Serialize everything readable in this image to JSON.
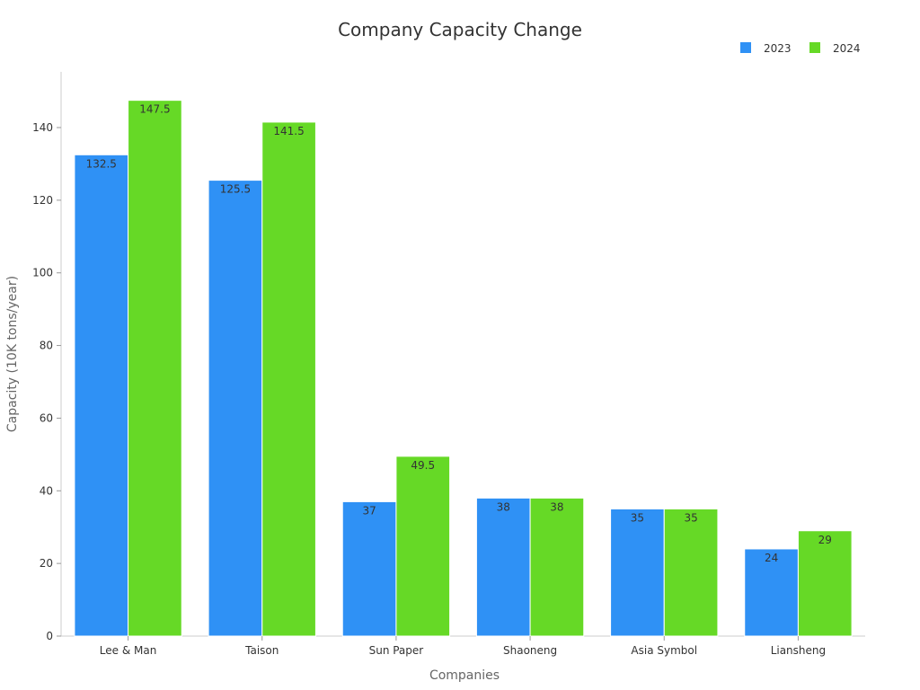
{
  "chart_data": {
    "type": "bar",
    "title": "Company Capacity Change",
    "xlabel": "Companies",
    "ylabel": "Capacity (10K tons/year)",
    "categories": [
      "Lee & Man",
      "Taison",
      "Sun Paper",
      "Shaoneng",
      "Asia Symbol",
      "Liansheng"
    ],
    "series": [
      {
        "name": "2023",
        "color": "#2f91f5",
        "values": [
          132.5,
          125.5,
          37,
          38,
          35,
          24
        ]
      },
      {
        "name": "2024",
        "color": "#66d926",
        "values": [
          147.5,
          141.5,
          49.5,
          38,
          35,
          29
        ]
      }
    ],
    "ylim": [
      0,
      155
    ],
    "yticks": [
      0,
      20,
      40,
      60,
      80,
      100,
      120,
      140
    ],
    "legend_position": "top-right",
    "grid": false
  }
}
